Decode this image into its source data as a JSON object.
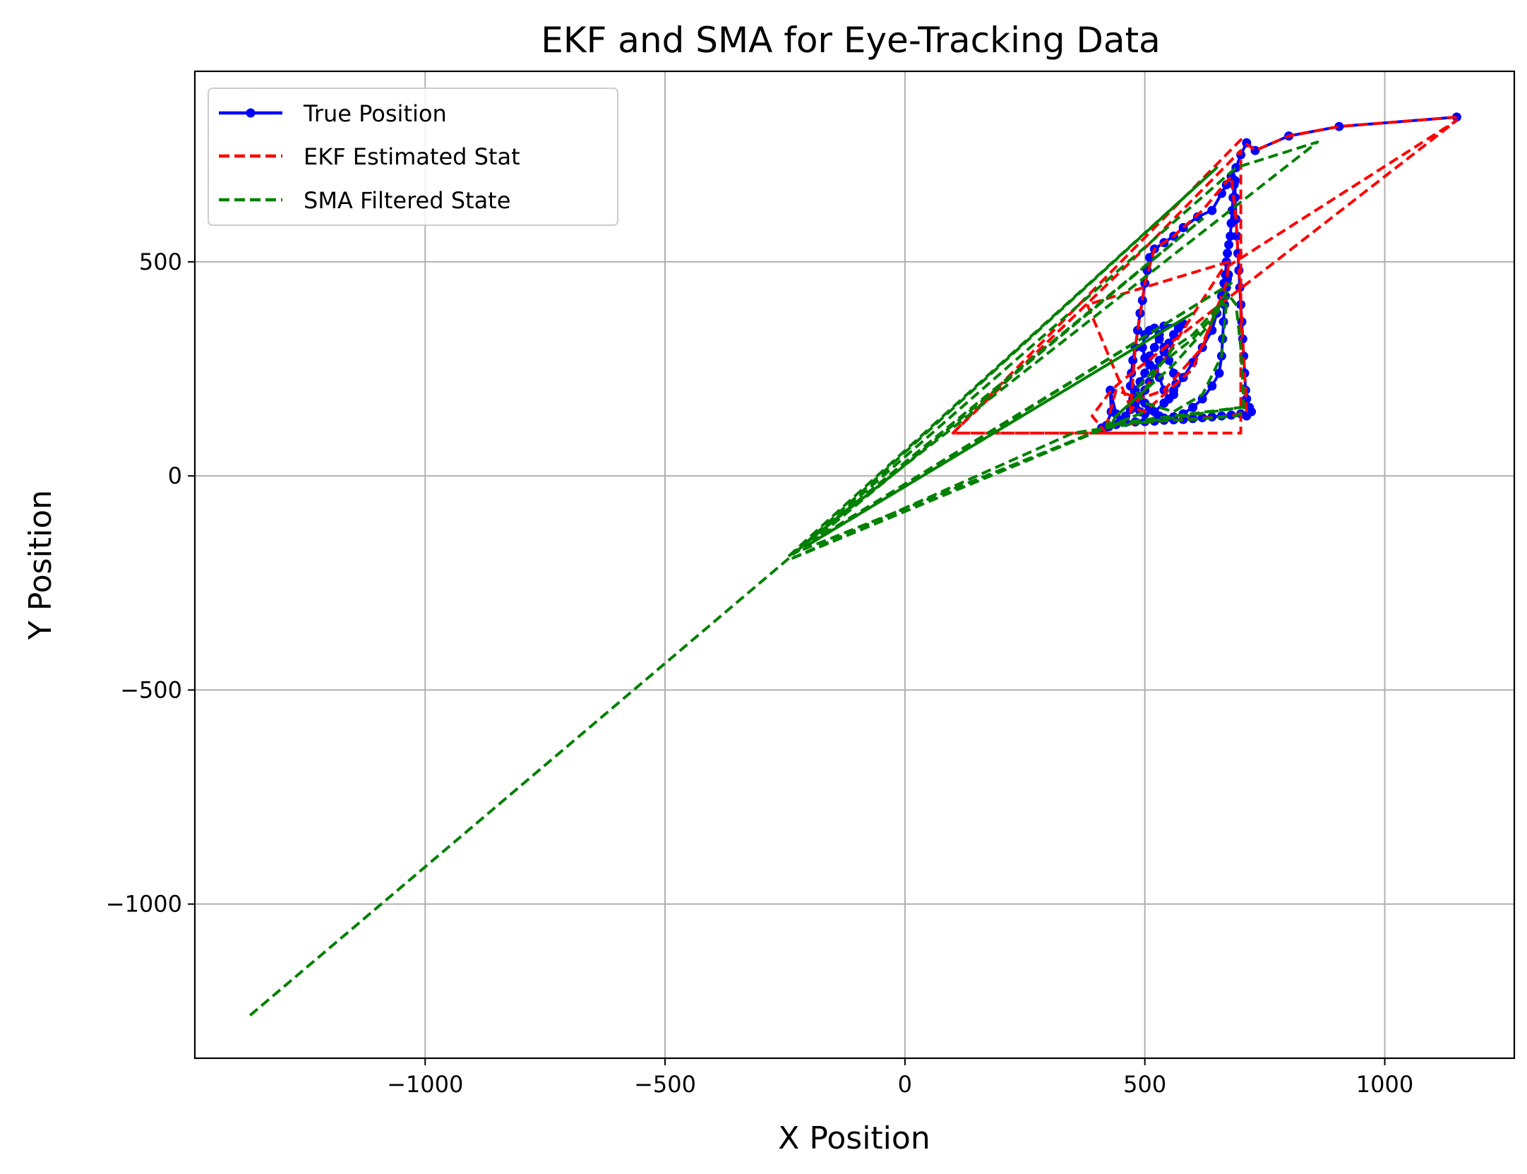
{
  "chart_data": {
    "type": "line",
    "title": "EKF and SMA for Eye-Tracking Data",
    "xlabel": "X Position",
    "ylabel": "Y Position",
    "xlim": [
      -1480,
      1270
    ],
    "ylim": [
      -1360,
      945
    ],
    "grid": true,
    "legend_position": "upper-left",
    "xticks": [
      {
        "value": -1000,
        "label": "−1000"
      },
      {
        "value": -500,
        "label": "−500"
      },
      {
        "value": 0,
        "label": "0"
      },
      {
        "value": 500,
        "label": "500"
      },
      {
        "value": 1000,
        "label": "1000"
      }
    ],
    "yticks": [
      {
        "value": 500,
        "label": "500"
      },
      {
        "value": 0,
        "label": "0"
      },
      {
        "value": -500,
        "label": "−500"
      },
      {
        "value": -1000,
        "label": "−1000"
      }
    ],
    "series": [
      {
        "name": "True Position",
        "color": "#0000ff",
        "style": "solid-marker",
        "points": [
          [
            1150,
            838
          ],
          [
            905,
            816
          ],
          [
            800,
            794
          ],
          [
            730,
            760
          ],
          [
            712,
            778
          ],
          [
            700,
            750
          ],
          [
            690,
            720
          ],
          [
            680,
            700
          ],
          [
            670,
            680
          ],
          [
            660,
            660
          ],
          [
            640,
            620
          ],
          [
            610,
            605
          ],
          [
            580,
            580
          ],
          [
            560,
            560
          ],
          [
            540,
            545
          ],
          [
            520,
            530
          ],
          [
            510,
            510
          ],
          [
            505,
            480
          ],
          [
            500,
            450
          ],
          [
            495,
            410
          ],
          [
            490,
            380
          ],
          [
            485,
            340
          ],
          [
            480,
            300
          ],
          [
            475,
            270
          ],
          [
            472,
            240
          ],
          [
            470,
            210
          ],
          [
            475,
            180
          ],
          [
            480,
            160
          ],
          [
            490,
            150
          ],
          [
            500,
            145
          ],
          [
            520,
            150
          ],
          [
            540,
            170
          ],
          [
            560,
            200
          ],
          [
            580,
            230
          ],
          [
            600,
            265
          ],
          [
            620,
            300
          ],
          [
            640,
            340
          ],
          [
            650,
            380
          ],
          [
            660,
            420
          ],
          [
            665,
            450
          ],
          [
            668,
            470
          ],
          [
            670,
            500
          ],
          [
            672,
            520
          ],
          [
            675,
            540
          ],
          [
            678,
            560
          ],
          [
            680,
            590
          ],
          [
            682,
            620
          ],
          [
            684,
            650
          ],
          [
            686,
            680
          ],
          [
            688,
            690
          ],
          [
            688,
            650
          ],
          [
            690,
            600
          ],
          [
            692,
            560
          ],
          [
            694,
            520
          ],
          [
            696,
            480
          ],
          [
            698,
            440
          ],
          [
            700,
            400
          ],
          [
            702,
            360
          ],
          [
            704,
            320
          ],
          [
            706,
            280
          ],
          [
            708,
            240
          ],
          [
            710,
            200
          ],
          [
            712,
            180
          ],
          [
            718,
            160
          ],
          [
            722,
            150
          ],
          [
            712,
            140
          ],
          [
            700,
            145
          ],
          [
            680,
            142
          ],
          [
            660,
            140
          ],
          [
            640,
            138
          ],
          [
            620,
            136
          ],
          [
            600,
            134
          ],
          [
            580,
            132
          ],
          [
            560,
            131
          ],
          [
            540,
            130
          ],
          [
            520,
            128
          ],
          [
            500,
            127
          ],
          [
            480,
            126
          ],
          [
            460,
            125
          ],
          [
            440,
            120
          ],
          [
            425,
            115
          ],
          [
            415,
            110
          ],
          [
            410,
            112
          ],
          [
            420,
            118
          ],
          [
            430,
            150
          ],
          [
            428,
            200
          ],
          [
            440,
            145
          ],
          [
            450,
            130
          ],
          [
            460,
            140
          ],
          [
            470,
            155
          ],
          [
            480,
            170
          ],
          [
            490,
            185
          ],
          [
            500,
            200
          ],
          [
            510,
            220
          ],
          [
            520,
            245
          ],
          [
            530,
            270
          ],
          [
            540,
            290
          ],
          [
            550,
            310
          ],
          [
            560,
            330
          ],
          [
            570,
            345
          ],
          [
            580,
            355
          ],
          [
            540,
            350
          ],
          [
            530,
            330
          ],
          [
            520,
            300
          ],
          [
            510,
            280
          ],
          [
            500,
            275
          ],
          [
            495,
            300
          ],
          [
            500,
            330
          ],
          [
            510,
            340
          ],
          [
            520,
            345
          ],
          [
            530,
            320
          ],
          [
            540,
            300
          ],
          [
            550,
            270
          ],
          [
            560,
            240
          ],
          [
            565,
            215
          ],
          [
            560,
            190
          ],
          [
            550,
            180
          ],
          [
            540,
            200
          ],
          [
            530,
            230
          ],
          [
            520,
            250
          ],
          [
            510,
            260
          ],
          [
            500,
            240
          ],
          [
            490,
            220
          ],
          [
            480,
            200
          ],
          [
            490,
            180
          ],
          [
            500,
            170
          ],
          [
            510,
            160
          ],
          [
            520,
            150
          ],
          [
            530,
            140
          ],
          [
            540,
            135
          ],
          [
            560,
            138
          ],
          [
            580,
            145
          ],
          [
            600,
            160
          ],
          [
            620,
            180
          ],
          [
            640,
            210
          ],
          [
            655,
            240
          ],
          [
            660,
            280
          ],
          [
            662,
            320
          ],
          [
            664,
            360
          ],
          [
            666,
            400
          ],
          [
            668,
            420
          ],
          [
            670,
            440
          ],
          [
            672,
            460
          ],
          [
            674,
            470
          ]
        ]
      },
      {
        "name": "EKF Estimated Stat",
        "color": "#ff0000",
        "style": "dashed",
        "points": [
          [
            1150,
            838
          ],
          [
            905,
            816
          ],
          [
            800,
            794
          ],
          [
            730,
            760
          ],
          [
            700,
            785
          ],
          [
            100,
            100
          ],
          [
            700,
            100
          ],
          [
            700,
            760
          ],
          [
            512,
            545
          ],
          [
            100,
            100
          ],
          [
            500,
            100
          ],
          [
            420,
            100
          ],
          [
            390,
            140
          ],
          [
            430,
            200
          ],
          [
            450,
            220
          ],
          [
            1150,
            830
          ],
          [
            660,
            480
          ],
          [
            470,
            150
          ],
          [
            480,
            300
          ],
          [
            500,
            450
          ],
          [
            520,
            530
          ],
          [
            560,
            560
          ],
          [
            620,
            620
          ],
          [
            680,
            700
          ],
          [
            690,
            600
          ],
          [
            700,
            400
          ],
          [
            710,
            200
          ],
          [
            712,
            150
          ],
          [
            680,
            140
          ],
          [
            560,
            130
          ],
          [
            420,
            118
          ],
          [
            440,
            200
          ],
          [
            490,
            180
          ],
          [
            540,
            200
          ],
          [
            620,
            300
          ],
          [
            670,
            450
          ],
          [
            675,
            500
          ],
          [
            380,
            400
          ],
          [
            470,
            160
          ],
          [
            500,
            150
          ],
          [
            600,
            250
          ],
          [
            660,
            420
          ]
        ]
      },
      {
        "name": "SMA Filtered State",
        "color": "#008000",
        "style": "dashed",
        "points": [
          [
            -1365,
            -1260
          ],
          [
            -250,
            -200
          ],
          [
            690,
            720
          ],
          [
            860,
            780
          ],
          [
            -245,
            -190
          ],
          [
            650,
            720
          ],
          [
            -220,
            -170
          ],
          [
            620,
            600
          ],
          [
            -190,
            -150
          ],
          [
            680,
            450
          ],
          [
            -200,
            -160
          ],
          [
            600,
            380
          ],
          [
            -230,
            -180
          ],
          [
            500,
            150
          ],
          [
            -240,
            -195
          ],
          [
            350,
            100
          ],
          [
            700,
            160
          ],
          [
            420,
            120
          ],
          [
            480,
            180
          ],
          [
            560,
            260
          ],
          [
            640,
            360
          ],
          [
            670,
            430
          ],
          [
            690,
            400
          ],
          [
            700,
            300
          ],
          [
            705,
            200
          ],
          [
            706,
            150
          ],
          [
            690,
            140
          ],
          [
            600,
            132
          ],
          [
            500,
            126
          ],
          [
            430,
            120
          ],
          [
            440,
            140
          ],
          [
            470,
            170
          ],
          [
            500,
            200
          ],
          [
            520,
            240
          ],
          [
            540,
            270
          ],
          [
            560,
            300
          ],
          [
            600,
            330
          ],
          [
            640,
            380
          ],
          [
            660,
            410
          ],
          [
            665,
            400
          ],
          [
            600,
            320
          ],
          [
            520,
            250
          ],
          [
            480,
            200
          ],
          [
            500,
            170
          ],
          [
            560,
            150
          ],
          [
            620,
            190
          ],
          [
            660,
            280
          ],
          [
            668,
            380
          ],
          [
            672,
            420
          ]
        ]
      }
    ]
  }
}
